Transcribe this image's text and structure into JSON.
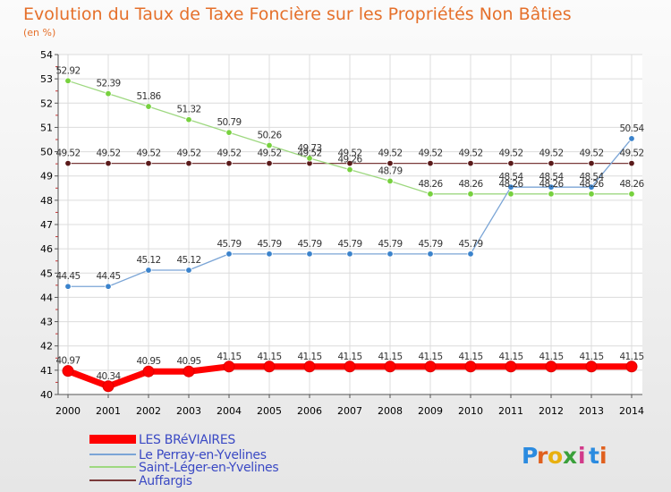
{
  "chart_data": {
    "type": "line",
    "title": "Evolution du Taux de Taxe Foncière sur les Propriétés Non Bâties",
    "subtitle": "(en %)",
    "xlabel": "",
    "ylabel": "",
    "ylim": [
      40,
      54
    ],
    "yticks": [
      40,
      41,
      42,
      43,
      44,
      45,
      46,
      47,
      48,
      49,
      50,
      51,
      52,
      53,
      54
    ],
    "categories": [
      "2000",
      "2001",
      "2002",
      "2003",
      "2004",
      "2005",
      "2006",
      "2007",
      "2008",
      "2009",
      "2010",
      "2011",
      "2012",
      "2013",
      "2014"
    ],
    "grid": true,
    "legend_position": "bottom-left",
    "series": [
      {
        "name": "LES BRéVIAIRES",
        "color": "#ff0000",
        "marker": "#ff0000",
        "values": [
          40.97,
          40.34,
          40.95,
          40.95,
          41.15,
          41.15,
          41.15,
          41.15,
          41.15,
          41.15,
          41.15,
          41.15,
          41.15,
          41.15,
          41.15
        ],
        "labels": [
          "40.97",
          "40.34",
          "40.95",
          "40.95",
          "41.15",
          "41.15",
          "41.15",
          "41.15",
          "41.15",
          "41.15",
          "41.15",
          "41.15",
          "41.15",
          "41.15",
          "41.15"
        ]
      },
      {
        "name": "Le Perray-en-Yvelines",
        "color": "#7ba5d6",
        "marker": "#3b83cc",
        "values": [
          44.45,
          44.45,
          45.12,
          45.12,
          45.79,
          45.79,
          45.79,
          45.79,
          45.79,
          45.79,
          45.79,
          48.54,
          48.54,
          48.54,
          50.54
        ],
        "labels": [
          "44.45",
          "44.45",
          "45.12",
          "45.12",
          "45.79",
          "45.79",
          "45.79",
          "45.79",
          "45.79",
          "45.79",
          "45.79",
          "48.54",
          "48.54",
          "48.54",
          "50.54"
        ]
      },
      {
        "name": "Saint-Léger-en-Yvelines",
        "color": "#9ed880",
        "marker": "#77d13e",
        "values": [
          52.92,
          52.39,
          51.86,
          51.32,
          50.79,
          50.26,
          49.73,
          49.26,
          48.79,
          48.26,
          48.26,
          48.26,
          48.26,
          48.26,
          48.26
        ],
        "labels": [
          "52.92",
          "52.39",
          "51.86",
          "51.32",
          "50.79",
          "50.26",
          "49.73",
          "49.26",
          "48.79",
          "48.26",
          "48.26",
          "48.26",
          "48.26",
          "48.26",
          "48.26"
        ]
      },
      {
        "name": "Auffargis",
        "color": "#7a3a3a",
        "marker": "#5a1a1a",
        "values": [
          49.52,
          49.52,
          49.52,
          49.52,
          49.52,
          49.52,
          49.52,
          49.52,
          49.52,
          49.52,
          49.52,
          49.52,
          49.52,
          49.52,
          49.52
        ],
        "labels": [
          "49.52",
          "49.52",
          "49.52",
          "49.52",
          "49.52",
          "49.52",
          "49.52",
          "49.52",
          "49.52",
          "49.52",
          "49.52",
          "49.52",
          "49.52",
          "49.52",
          "49.52"
        ]
      }
    ]
  },
  "logo": {
    "letters": [
      "P",
      "r",
      "o",
      "x",
      "i",
      "t",
      "i"
    ],
    "colors": [
      "#2b8be0",
      "#e0601e",
      "#e8b010",
      "#3aa03a",
      "#d23a8a",
      "#2b8be0",
      "#e0601e"
    ]
  }
}
